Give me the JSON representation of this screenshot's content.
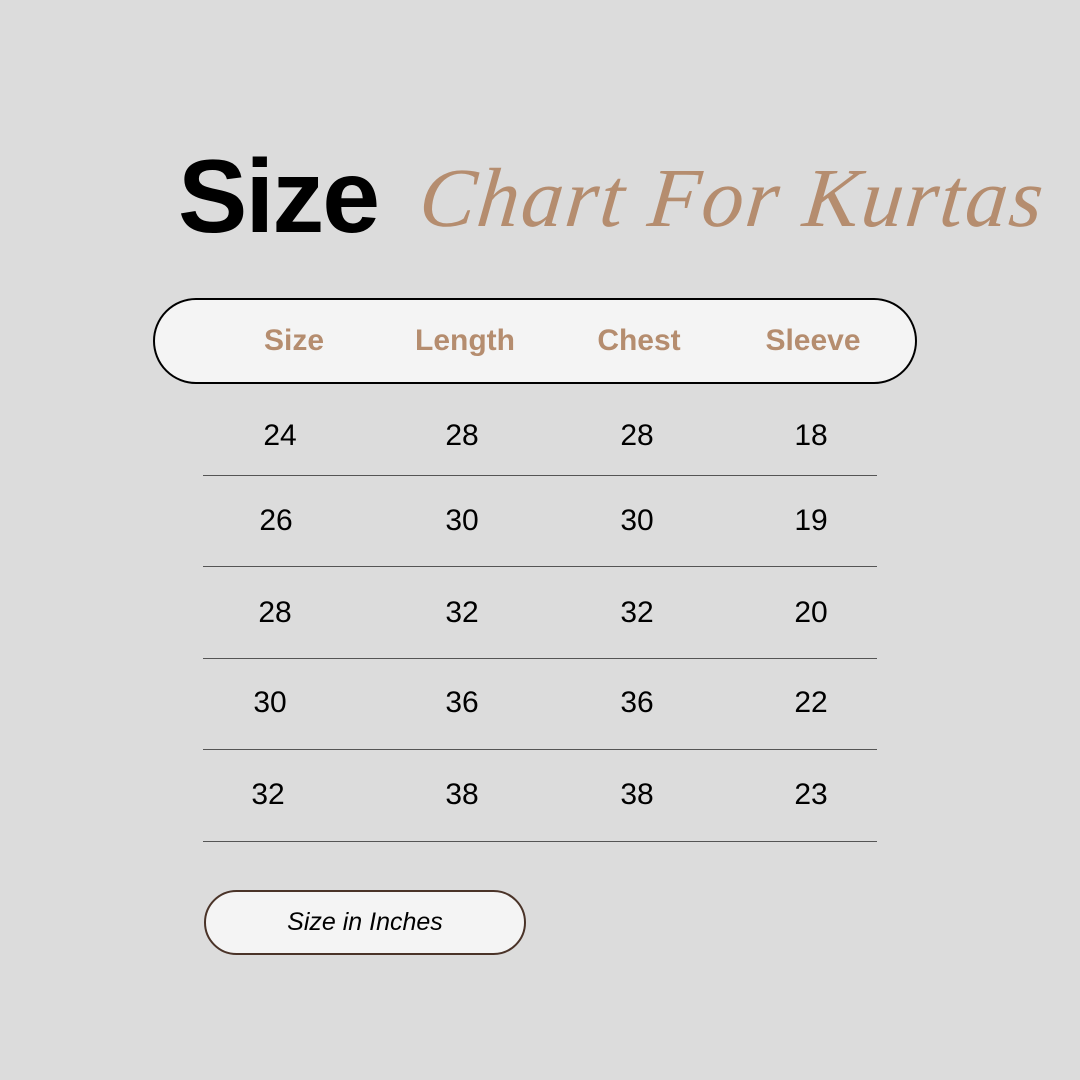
{
  "title": {
    "bold": "Size",
    "script": "Chart For Kurtas"
  },
  "colors": {
    "background": "#dcdcdc",
    "accent": "#b58d6f",
    "pill": "#f4f4f4"
  },
  "table": {
    "headers": [
      "Size",
      "Length",
      "Chest",
      "Sleeve"
    ],
    "rows": [
      [
        "24",
        "28",
        "28",
        "18"
      ],
      [
        "26",
        "30",
        "30",
        "19"
      ],
      [
        "28",
        "32",
        "32",
        "20"
      ],
      [
        "30",
        "36",
        "36",
        "22"
      ],
      [
        "32",
        "38",
        "38",
        "23"
      ]
    ]
  },
  "note": "Size in Inches"
}
